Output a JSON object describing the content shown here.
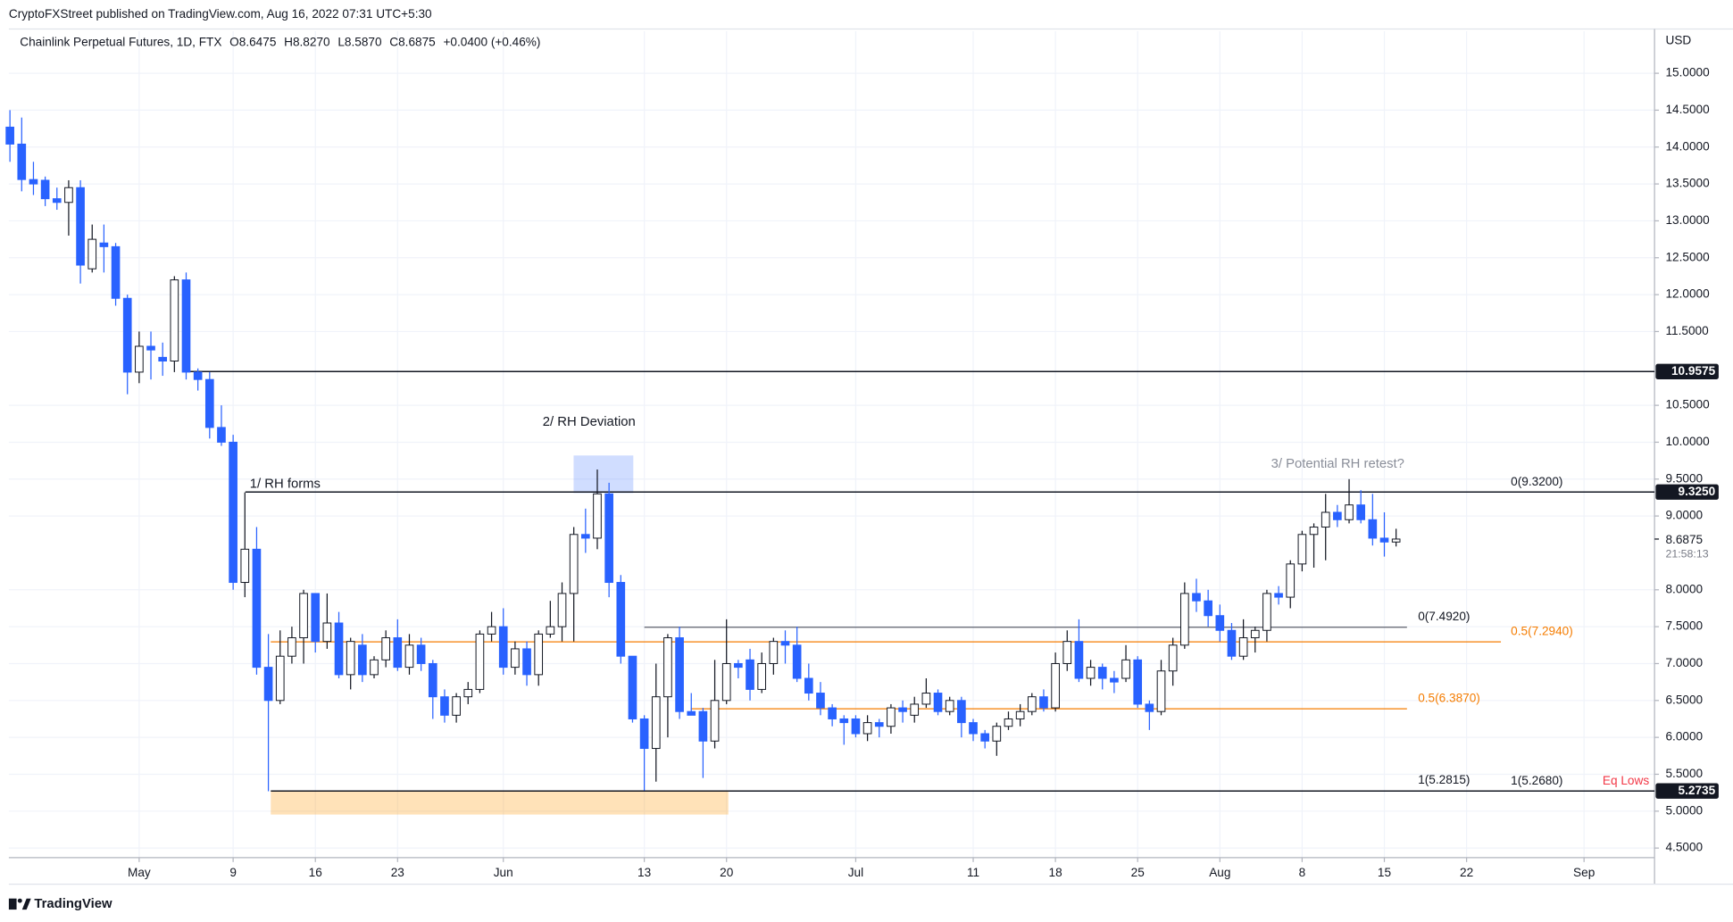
{
  "chart_data": {
    "type": "candlestick",
    "publisher": "CryptoFXStreet published on TradingView.com, Aug 16, 2022 07:31 UTC+5:30",
    "title": "Chainlink Perpetual Futures, 1D, FTX",
    "ohlc_labels": [
      "O8.6475",
      "H8.8270",
      "L8.5870",
      "C8.6875"
    ],
    "change_label": "+0.0400 (+0.46%)",
    "currency": "USD",
    "footer": "TradingView",
    "countdown": "21:58:13",
    "last_price": {
      "value": 8.6875,
      "label": "8.6875"
    },
    "up_color": "#ffffff",
    "up_border": "#131722",
    "down_color": "#2962ff",
    "grid": true,
    "ylim": [
      4.37,
      15.57
    ],
    "yticks": [
      {
        "value": 4.5,
        "label": "4.5000"
      },
      {
        "value": 5,
        "label": "5.0000"
      },
      {
        "value": 5.5,
        "label": "5.5000"
      },
      {
        "value": 6,
        "label": "6.0000"
      },
      {
        "value": 6.5,
        "label": "6.5000"
      },
      {
        "value": 7,
        "label": "7.0000"
      },
      {
        "value": 7.5,
        "label": "7.5000"
      },
      {
        "value": 8,
        "label": "8.0000"
      },
      {
        "value": 9,
        "label": "9.0000"
      },
      {
        "value": 9.5,
        "label": "9.5000"
      },
      {
        "value": 10,
        "label": "10.0000"
      },
      {
        "value": 10.5,
        "label": "10.5000"
      },
      {
        "value": 11.5,
        "label": "11.5000"
      },
      {
        "value": 12,
        "label": "12.0000"
      },
      {
        "value": 12.5,
        "label": "12.5000"
      },
      {
        "value": 13,
        "label": "13.0000"
      },
      {
        "value": 13.5,
        "label": "13.5000"
      },
      {
        "value": 14,
        "label": "14.0000"
      },
      {
        "value": 14.5,
        "label": "14.5000"
      },
      {
        "value": 15,
        "label": "15.0000"
      }
    ],
    "categories": [
      null,
      null,
      null,
      null,
      null,
      null,
      null,
      null,
      null,
      null,
      null,
      "May",
      null,
      null,
      null,
      null,
      null,
      null,
      null,
      "9",
      null,
      null,
      null,
      null,
      null,
      null,
      "16",
      null,
      null,
      null,
      null,
      null,
      null,
      "23",
      null,
      null,
      null,
      null,
      null,
      null,
      null,
      null,
      "Jun",
      null,
      null,
      null,
      null,
      null,
      null,
      null,
      null,
      null,
      null,
      null,
      "13",
      null,
      null,
      null,
      null,
      null,
      null,
      "20",
      null,
      null,
      null,
      null,
      null,
      null,
      null,
      null,
      null,
      null,
      "Jul",
      null,
      null,
      null,
      null,
      null,
      null,
      null,
      null,
      null,
      "11",
      null,
      null,
      null,
      null,
      null,
      null,
      "18",
      null,
      null,
      null,
      null,
      null,
      null,
      "25",
      null,
      null,
      null,
      null,
      null,
      null,
      "Aug",
      null,
      null,
      null,
      null,
      null,
      null,
      "8",
      null,
      null,
      null,
      null,
      null,
      null,
      "15",
      null,
      null,
      null,
      null,
      null,
      null,
      "22",
      null,
      null,
      null,
      null,
      null,
      null,
      null,
      null,
      null,
      "Sep",
      null,
      null,
      null,
      null,
      null,
      null
    ],
    "open": [
      14.27,
      14.04,
      13.56,
      13.55,
      13.3,
      13.25,
      13.45,
      12.35,
      12.7,
      12.65,
      11.95,
      10.95,
      11.3,
      11.15,
      11.1,
      12.2,
      10.95,
      10.85,
      10.2,
      10.0,
      8.1,
      8.55,
      6.95,
      6.5,
      7.1,
      7.35,
      7.95,
      7.3,
      7.55,
      6.85,
      7.25,
      6.85,
      7.05,
      7.35,
      6.95,
      7.25,
      7.0,
      6.55,
      6.3,
      6.55,
      6.65,
      7.4,
      7.5,
      6.95,
      7.2,
      6.85,
      7.4,
      7.5,
      7.95,
      8.75,
      8.7,
      9.3,
      8.1,
      7.1,
      6.25,
      5.85,
      6.55,
      7.35,
      6.35,
      6.35,
      5.95,
      6.5,
      7.0,
      7.05,
      6.65,
      7.0,
      7.3,
      7.25,
      6.8,
      6.6,
      6.4,
      6.25,
      6.25,
      6.05,
      6.2,
      6.15,
      6.4,
      6.3,
      6.45,
      6.6,
      6.35,
      6.5,
      6.2,
      6.05,
      5.95,
      6.15,
      6.25,
      6.35,
      6.55,
      6.4,
      7.0,
      7.3,
      6.8,
      6.95,
      6.8,
      6.8,
      7.05,
      6.45,
      6.35,
      6.9,
      7.25,
      7.95,
      7.85,
      7.65,
      7.45,
      7.1,
      7.35,
      7.45,
      7.95,
      7.9,
      8.35,
      8.75,
      8.85,
      9.05,
      8.95,
      9.15,
      8.95,
      8.7,
      8.6475,
      null,
      null,
      null,
      null,
      null,
      null,
      null,
      null,
      null,
      null,
      null,
      null,
      null,
      null,
      null,
      null,
      null,
      null,
      null,
      null,
      null,
      null
    ],
    "high": [
      14.5,
      14.4,
      13.8,
      13.6,
      13.45,
      13.55,
      13.55,
      12.95,
      12.95,
      12.7,
      12.0,
      11.5,
      11.5,
      11.35,
      12.25,
      12.3,
      11.0,
      10.95,
      10.5,
      10.1,
      9.32,
      8.85,
      7.4,
      7.45,
      7.5,
      8.0,
      7.95,
      7.95,
      7.7,
      7.35,
      7.4,
      7.1,
      7.45,
      7.6,
      7.4,
      7.35,
      7.05,
      6.65,
      6.6,
      6.75,
      7.45,
      7.7,
      7.75,
      7.3,
      7.3,
      7.45,
      7.85,
      8.1,
      8.85,
      9.1,
      9.63,
      9.45,
      8.2,
      7.1,
      6.3,
      7.0,
      7.4,
      7.5,
      6.6,
      6.4,
      7.05,
      7.6,
      7.05,
      7.2,
      7.15,
      7.35,
      7.45,
      7.5,
      7.0,
      6.75,
      6.45,
      6.3,
      6.3,
      6.3,
      6.25,
      6.45,
      6.5,
      6.55,
      6.8,
      6.65,
      6.55,
      6.55,
      6.25,
      6.1,
      6.2,
      6.35,
      6.45,
      6.6,
      6.65,
      7.15,
      7.45,
      7.6,
      7.05,
      7.0,
      6.9,
      7.25,
      7.1,
      6.5,
      7.05,
      7.35,
      8.1,
      8.15,
      8.0,
      7.8,
      7.55,
      7.6,
      7.5,
      8.0,
      8.05,
      8.4,
      8.8,
      8.9,
      9.3,
      9.15,
      9.5,
      9.35,
      9.3,
      9.05,
      8.827,
      null,
      null,
      null,
      null,
      null,
      null,
      null,
      null,
      null,
      null,
      null,
      null,
      null,
      null,
      null,
      null,
      null,
      null,
      null,
      null,
      null,
      null
    ],
    "low": [
      13.8,
      13.4,
      13.35,
      13.2,
      13.15,
      12.8,
      12.15,
      12.3,
      12.3,
      11.85,
      10.65,
      10.8,
      10.85,
      10.9,
      10.95,
      10.85,
      10.7,
      10.05,
      9.95,
      8.0,
      7.9,
      6.85,
      5.27,
      6.45,
      7.0,
      7.0,
      7.15,
      7.2,
      6.8,
      6.65,
      6.75,
      6.8,
      6.95,
      6.9,
      6.85,
      6.9,
      6.25,
      6.2,
      6.2,
      6.45,
      6.6,
      7.3,
      6.85,
      6.85,
      6.7,
      6.7,
      7.35,
      7.3,
      7.3,
      8.5,
      8.55,
      7.9,
      7.0,
      6.2,
      5.28,
      5.4,
      6.0,
      6.25,
      6.3,
      5.45,
      5.85,
      6.45,
      6.8,
      6.5,
      6.6,
      6.85,
      7.0,
      6.75,
      6.5,
      6.3,
      6.15,
      5.9,
      6.0,
      5.95,
      6.0,
      6.05,
      6.2,
      6.2,
      6.4,
      6.3,
      6.3,
      6.0,
      5.95,
      5.85,
      5.75,
      6.1,
      6.15,
      6.3,
      6.35,
      6.35,
      6.9,
      6.75,
      6.7,
      6.65,
      6.6,
      6.75,
      6.4,
      6.1,
      6.3,
      6.7,
      7.2,
      7.7,
      7.5,
      7.3,
      7.05,
      7.05,
      7.15,
      7.3,
      7.8,
      7.75,
      8.25,
      8.3,
      8.4,
      8.85,
      8.9,
      8.9,
      8.6,
      8.45,
      8.587,
      null,
      null,
      null,
      null,
      null,
      null,
      null,
      null,
      null,
      null,
      null,
      null,
      null,
      null,
      null,
      null,
      null,
      null,
      null,
      null,
      null,
      null
    ],
    "close": [
      14.04,
      13.56,
      13.5,
      13.3,
      13.25,
      13.45,
      12.4,
      12.75,
      12.65,
      11.95,
      10.95,
      11.3,
      11.25,
      11.1,
      12.2,
      10.95,
      10.85,
      10.2,
      10.0,
      8.1,
      8.55,
      6.95,
      6.5,
      7.1,
      7.35,
      7.95,
      7.3,
      7.55,
      6.85,
      7.3,
      6.85,
      7.05,
      7.35,
      6.95,
      7.25,
      7.0,
      6.55,
      6.3,
      6.55,
      6.65,
      7.4,
      7.5,
      6.95,
      7.2,
      6.85,
      7.4,
      7.5,
      7.95,
      8.75,
      8.7,
      9.3,
      8.1,
      7.1,
      6.25,
      5.85,
      6.55,
      7.35,
      6.35,
      6.3,
      5.95,
      6.5,
      7.0,
      6.95,
      6.65,
      7.0,
      7.3,
      7.25,
      6.8,
      6.6,
      6.4,
      6.25,
      6.2,
      6.05,
      6.2,
      6.15,
      6.4,
      6.35,
      6.45,
      6.6,
      6.35,
      6.5,
      6.2,
      6.05,
      5.95,
      6.15,
      6.25,
      6.35,
      6.55,
      6.4,
      7.0,
      7.3,
      6.8,
      6.95,
      6.8,
      6.75,
      7.05,
      6.45,
      6.35,
      6.9,
      7.25,
      7.95,
      7.85,
      7.65,
      7.45,
      7.1,
      7.35,
      7.45,
      7.95,
      7.9,
      8.35,
      8.75,
      8.85,
      9.05,
      8.95,
      9.15,
      8.95,
      8.7,
      8.6475,
      8.6875,
      null,
      null,
      null,
      null,
      null,
      null,
      null,
      null,
      null,
      null,
      null,
      null,
      null,
      null,
      null,
      null,
      null,
      null,
      null,
      null,
      null,
      null
    ],
    "levels": [
      {
        "value": 10.9575,
        "label": "10.9575"
      },
      {
        "value": 9.325,
        "label": "9.3250"
      },
      {
        "value": 5.2735,
        "label": "5.2735"
      }
    ],
    "fib_levels": [
      {
        "value": 7.492,
        "label": "0(7.4920)",
        "color": "#131722"
      },
      {
        "value": 7.294,
        "label": "0.5(7.2940)",
        "color": "#f57c00"
      },
      {
        "value": 6.387,
        "label": "0.5(6.3870)",
        "color": "#f57c00"
      },
      {
        "value": 5.2815,
        "label": "1(5.2815)",
        "color": "#131722"
      },
      {
        "value": 5.268,
        "label": "1(5.2680)",
        "color": "#131722"
      },
      {
        "value": 9.32,
        "label": "0(9.3200)",
        "color": "#131722"
      }
    ],
    "annotations": [
      {
        "text": "1/ RH forms",
        "color": "#131722"
      },
      {
        "text": "2/ RH Deviation",
        "color": "#131722"
      },
      {
        "text": "3/ Potential RH retest?",
        "color": "#8a8e99"
      },
      {
        "text": "Eq Lows",
        "color": "#f23645"
      }
    ]
  }
}
